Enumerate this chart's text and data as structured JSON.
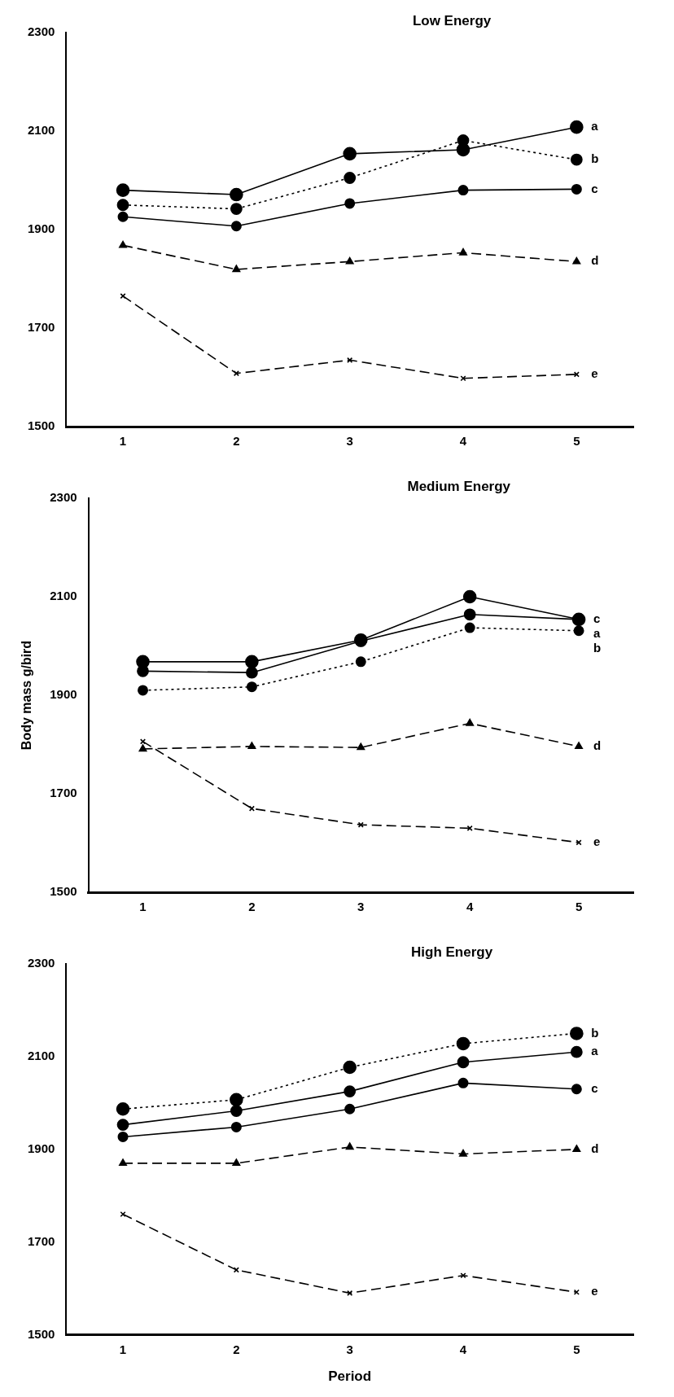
{
  "chart_data": [
    {
      "type": "line",
      "title": "Low Energy",
      "categories": [
        "1",
        "2",
        "3",
        "4",
        "5"
      ],
      "ylim": [
        1500,
        2300
      ],
      "yticks": [
        1500,
        1700,
        1900,
        2100,
        2300
      ],
      "grid": false,
      "legend": false,
      "series": [
        {
          "name": "a",
          "color": "#000000",
          "marker": "circle",
          "line_style": "solid",
          "values": [
            1980,
            1971,
            2054,
            2062,
            2108
          ]
        },
        {
          "name": "b",
          "color": "#000000",
          "marker": "circle",
          "line_style": "dotted",
          "values": [
            1950,
            1942,
            2005,
            2081,
            2042
          ]
        },
        {
          "name": "c",
          "color": "#000000",
          "marker": "circle",
          "line_style": "solid",
          "values": [
            1926,
            1907,
            1953,
            1980,
            1982
          ]
        },
        {
          "name": "d",
          "color": "#000000",
          "marker": "triangle",
          "line_style": "dashed",
          "values": [
            1868,
            1819,
            1835,
            1853,
            1835
          ]
        },
        {
          "name": "e",
          "color": "#000000",
          "marker": "cross",
          "line_style": "dashed",
          "values": [
            1765,
            1608,
            1635,
            1598,
            1606
          ]
        }
      ]
    },
    {
      "type": "line",
      "title": "Medium Energy",
      "ylabel": "Body mass g/bird",
      "categories": [
        "1",
        "2",
        "3",
        "4",
        "5"
      ],
      "ylim": [
        1500,
        2300
      ],
      "yticks": [
        1500,
        1700,
        1900,
        2100,
        2300
      ],
      "grid": false,
      "legend": false,
      "series": [
        {
          "name": "c",
          "color": "#000000",
          "marker": "circle",
          "line_style": "solid",
          "values": [
            1968,
            1968,
            2012,
            2100,
            2054
          ]
        },
        {
          "name": "a",
          "color": "#000000",
          "marker": "circle",
          "line_style": "solid",
          "values": [
            1949,
            1946,
            2010,
            2064,
            2054
          ]
        },
        {
          "name": "b",
          "color": "#000000",
          "marker": "circle",
          "line_style": "dotted",
          "values": [
            1910,
            1917,
            1968,
            2037,
            2031
          ]
        },
        {
          "name": "d",
          "color": "#000000",
          "marker": "triangle",
          "line_style": "dashed",
          "values": [
            1791,
            1796,
            1794,
            1843,
            1796
          ]
        },
        {
          "name": "e",
          "color": "#000000",
          "marker": "cross",
          "line_style": "dashed",
          "values": [
            1806,
            1670,
            1637,
            1630,
            1601
          ]
        }
      ]
    },
    {
      "type": "line",
      "title": "High Energy",
      "xlabel": "Period",
      "categories": [
        "1",
        "2",
        "3",
        "4",
        "5"
      ],
      "ylim": [
        1500,
        2300
      ],
      "yticks": [
        1500,
        1700,
        1900,
        2100,
        2300
      ],
      "grid": false,
      "legend": false,
      "series": [
        {
          "name": "b",
          "color": "#000000",
          "marker": "circle",
          "line_style": "dotted",
          "values": [
            1987,
            2007,
            2077,
            2128,
            2150
          ]
        },
        {
          "name": "a",
          "color": "#000000",
          "marker": "circle",
          "line_style": "solid",
          "values": [
            1953,
            1983,
            2025,
            2088,
            2110
          ]
        },
        {
          "name": "c",
          "color": "#000000",
          "marker": "circle",
          "line_style": "solid",
          "values": [
            1927,
            1948,
            1987,
            2043,
            2030
          ]
        },
        {
          "name": "d",
          "color": "#000000",
          "marker": "triangle",
          "line_style": "dashed",
          "values": [
            1870,
            1870,
            1905,
            1890,
            1900
          ]
        },
        {
          "name": "e",
          "color": "#000000",
          "marker": "cross",
          "line_style": "dashed",
          "values": [
            1760,
            1640,
            1590,
            1628,
            1592
          ]
        }
      ]
    }
  ]
}
